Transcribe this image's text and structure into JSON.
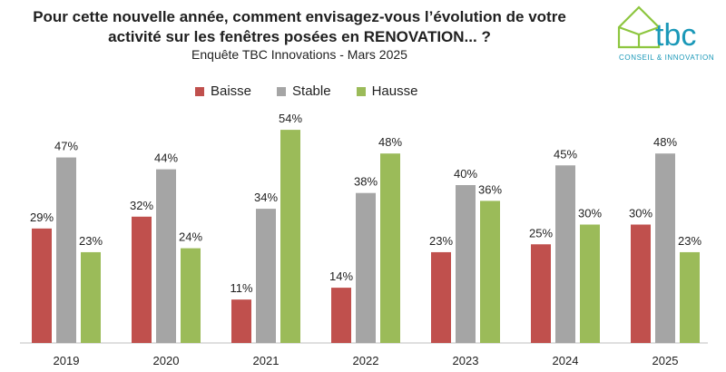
{
  "chart_data": {
    "type": "bar",
    "title_line1": "Pour cette nouvelle année, comment envisagez-vous l’évolution de votre",
    "title_line2": "activité sur les fenêtres posées en RENOVATION... ?",
    "subtitle": "Enquête TBC Innovations - Mars 2025",
    "categories": [
      "2019",
      "2020",
      "2021",
      "2022",
      "2023",
      "2024",
      "2025"
    ],
    "series": [
      {
        "name": "Baisse",
        "color": "#c0504d",
        "values": [
          29,
          32,
          11,
          14,
          23,
          25,
          30
        ],
        "labels": [
          "29%",
          "32%",
          "11%",
          "14%",
          "23%",
          "25%",
          "30%"
        ]
      },
      {
        "name": "Stable",
        "color": "#a5a5a5",
        "values": [
          47,
          44,
          34,
          38,
          40,
          45,
          48
        ],
        "labels": [
          "47%",
          "44%",
          "34%",
          "38%",
          "40%",
          "45%",
          "48%"
        ]
      },
      {
        "name": "Hausse",
        "color": "#9bbb59",
        "values": [
          23,
          24,
          54,
          48,
          36,
          30,
          23
        ],
        "labels": [
          "23%",
          "24%",
          "54%",
          "48%",
          "36%",
          "30%",
          "23%"
        ]
      }
    ],
    "ylim": [
      0,
      60
    ],
    "grid": false,
    "legend_position": "top"
  },
  "logo": {
    "text": "tbc",
    "tagline": "CONSEIL & INNOVATION",
    "color": "#8dc63f",
    "text_color": "#1a98b8"
  }
}
